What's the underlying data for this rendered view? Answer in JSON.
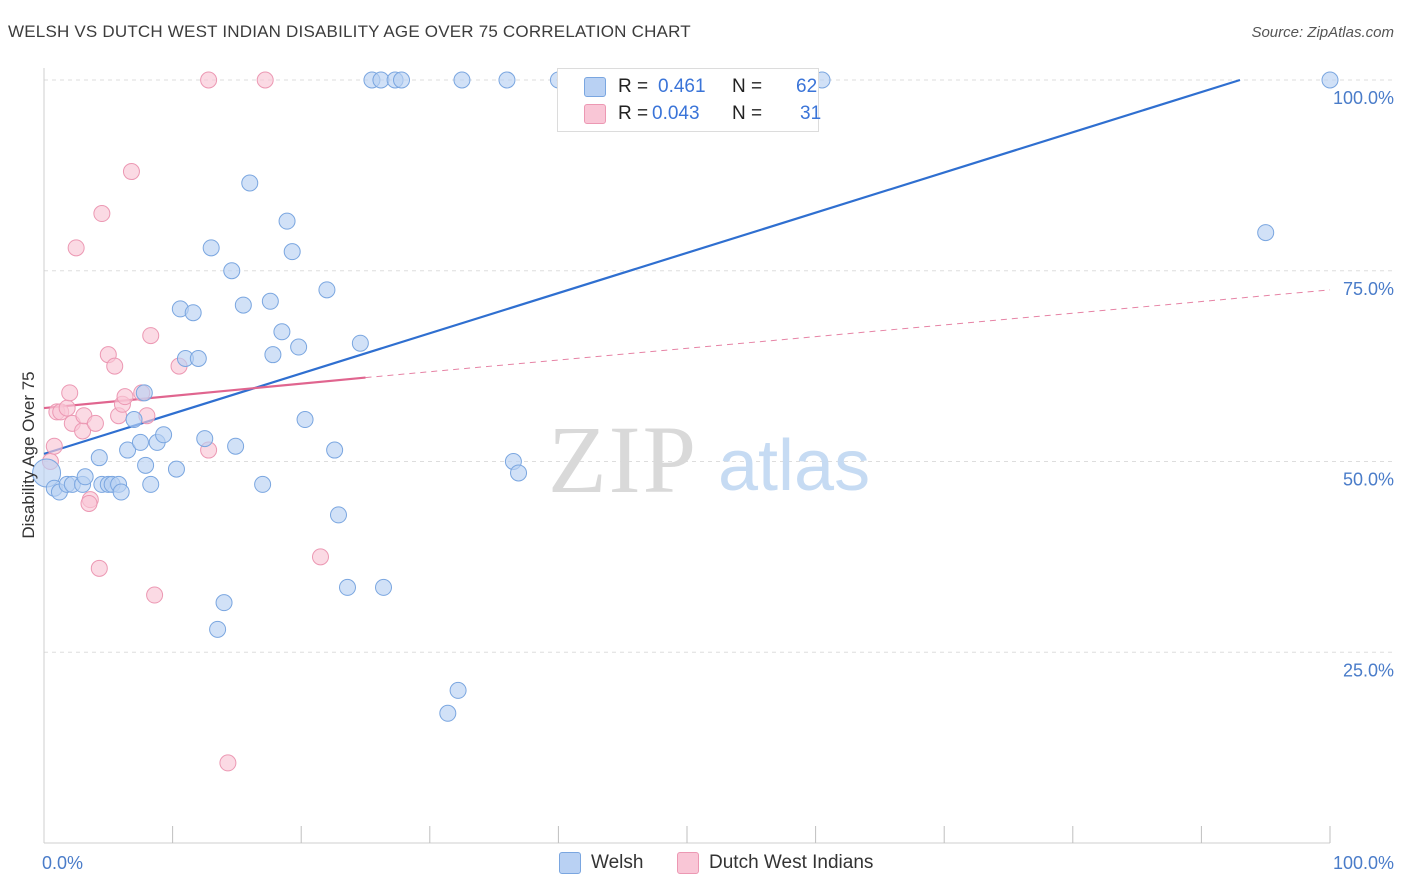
{
  "header": {
    "title": "WELSH VS DUTCH WEST INDIAN DISABILITY AGE OVER 75 CORRELATION CHART",
    "source": "Source: ZipAtlas.com"
  },
  "legend": {
    "row1": {
      "r_label": "R =",
      "r_value": "0.461",
      "n_label": "N =",
      "n_value": "62"
    },
    "row2": {
      "r_label": "R =",
      "r_value": "0.043",
      "n_label": "N =",
      "n_value": "31"
    }
  },
  "bottom_legend": {
    "welsh": "Welsh",
    "dutch": "Dutch West Indians"
  },
  "colors": {
    "welsh_fill": "#b9d1f3",
    "welsh_stroke": "#7aa6e0",
    "welsh_line": "#2f6fd0",
    "dutch_fill": "#f9c6d6",
    "dutch_stroke": "#ec98b3",
    "dutch_line": "#e0658f",
    "grid": "#dddddd",
    "axis_text": "#4a7cc9"
  },
  "chart_data": {
    "type": "scatter",
    "title": "WELSH VS DUTCH WEST INDIAN DISABILITY AGE OVER 75 CORRELATION CHART",
    "xlabel": "",
    "ylabel": "Disability Age Over 75",
    "xlim": [
      0,
      100
    ],
    "ylim": [
      0,
      100
    ],
    "x_tick_labels": [
      "0.0%",
      "100.0%"
    ],
    "y_tick_labels": [
      "100.0%",
      "75.0%",
      "50.0%",
      "25.0%"
    ],
    "y_tick_values": [
      100,
      75,
      50,
      25
    ],
    "grid": true,
    "legend_position": "top-center",
    "watermark": {
      "zip": "ZIP",
      "atlas": "atlas"
    },
    "series": [
      {
        "name": "Welsh",
        "R": 0.461,
        "N": 62,
        "trend": {
          "x": [
            0,
            93
          ],
          "y": [
            51,
            100
          ]
        },
        "points": [
          [
            0.2,
            48.5
          ],
          [
            0.8,
            46.5
          ],
          [
            1.2,
            46
          ],
          [
            1.8,
            47
          ],
          [
            2.2,
            47
          ],
          [
            3.0,
            47
          ],
          [
            3.2,
            48
          ],
          [
            4.3,
            50.5
          ],
          [
            4.5,
            47
          ],
          [
            5.0,
            47
          ],
          [
            5.3,
            47
          ],
          [
            5.8,
            47
          ],
          [
            6.0,
            46
          ],
          [
            6.5,
            51.5
          ],
          [
            7.0,
            55.5
          ],
          [
            7.5,
            52.5
          ],
          [
            7.8,
            59
          ],
          [
            7.9,
            49.5
          ],
          [
            8.3,
            47
          ],
          [
            8.8,
            52.5
          ],
          [
            9.3,
            53.5
          ],
          [
            10.3,
            49
          ],
          [
            10.6,
            70
          ],
          [
            11.0,
            63.5
          ],
          [
            11.6,
            69.5
          ],
          [
            12.0,
            63.5
          ],
          [
            12.5,
            53
          ],
          [
            13.0,
            78
          ],
          [
            13.5,
            28
          ],
          [
            14.0,
            31.5
          ],
          [
            14.6,
            75
          ],
          [
            14.9,
            52
          ],
          [
            15.5,
            70.5
          ],
          [
            16.0,
            86.5
          ],
          [
            17.0,
            47
          ],
          [
            17.6,
            71
          ],
          [
            17.8,
            64
          ],
          [
            18.5,
            67
          ],
          [
            18.9,
            81.5
          ],
          [
            19.3,
            77.5
          ],
          [
            19.8,
            65
          ],
          [
            20.3,
            55.5
          ],
          [
            22.0,
            72.5
          ],
          [
            22.6,
            51.5
          ],
          [
            22.9,
            43
          ],
          [
            23.6,
            33.5
          ],
          [
            24.6,
            65.5
          ],
          [
            25.5,
            100
          ],
          [
            26.2,
            100
          ],
          [
            26.4,
            33.5
          ],
          [
            27.3,
            100
          ],
          [
            27.8,
            100
          ],
          [
            31.4,
            17
          ],
          [
            32.2,
            20
          ],
          [
            32.5,
            100
          ],
          [
            36.5,
            50
          ],
          [
            36.9,
            48.5
          ],
          [
            36.0,
            100
          ],
          [
            40.0,
            100
          ],
          [
            60.5,
            100
          ],
          [
            95.0,
            80
          ],
          [
            100.0,
            100
          ]
        ]
      },
      {
        "name": "Dutch West Indians",
        "R": 0.043,
        "N": 31,
        "trend": {
          "x": [
            0,
            25
          ],
          "y": [
            57,
            61
          ]
        },
        "trend_extension": {
          "x": [
            25,
            100
          ],
          "y": [
            61,
            72.5
          ]
        },
        "points": [
          [
            0.5,
            50
          ],
          [
            0.8,
            52
          ],
          [
            1.0,
            56.5
          ],
          [
            1.3,
            56.5
          ],
          [
            1.8,
            57
          ],
          [
            2.0,
            59
          ],
          [
            2.2,
            55
          ],
          [
            2.5,
            78
          ],
          [
            3.0,
            54
          ],
          [
            3.1,
            56
          ],
          [
            3.6,
            45
          ],
          [
            4.0,
            55
          ],
          [
            4.3,
            36
          ],
          [
            4.5,
            82.5
          ],
          [
            5.0,
            64
          ],
          [
            5.5,
            62.5
          ],
          [
            5.8,
            56
          ],
          [
            6.1,
            57.5
          ],
          [
            6.3,
            58.5
          ],
          [
            6.8,
            88
          ],
          [
            7.6,
            59
          ],
          [
            8.0,
            56
          ],
          [
            8.3,
            66.5
          ],
          [
            8.6,
            32.5
          ],
          [
            10.5,
            62.5
          ],
          [
            12.8,
            51.5
          ],
          [
            14.3,
            10.5
          ],
          [
            21.5,
            37.5
          ],
          [
            12.8,
            100
          ],
          [
            17.2,
            100
          ],
          [
            3.5,
            44.5
          ]
        ]
      }
    ]
  }
}
